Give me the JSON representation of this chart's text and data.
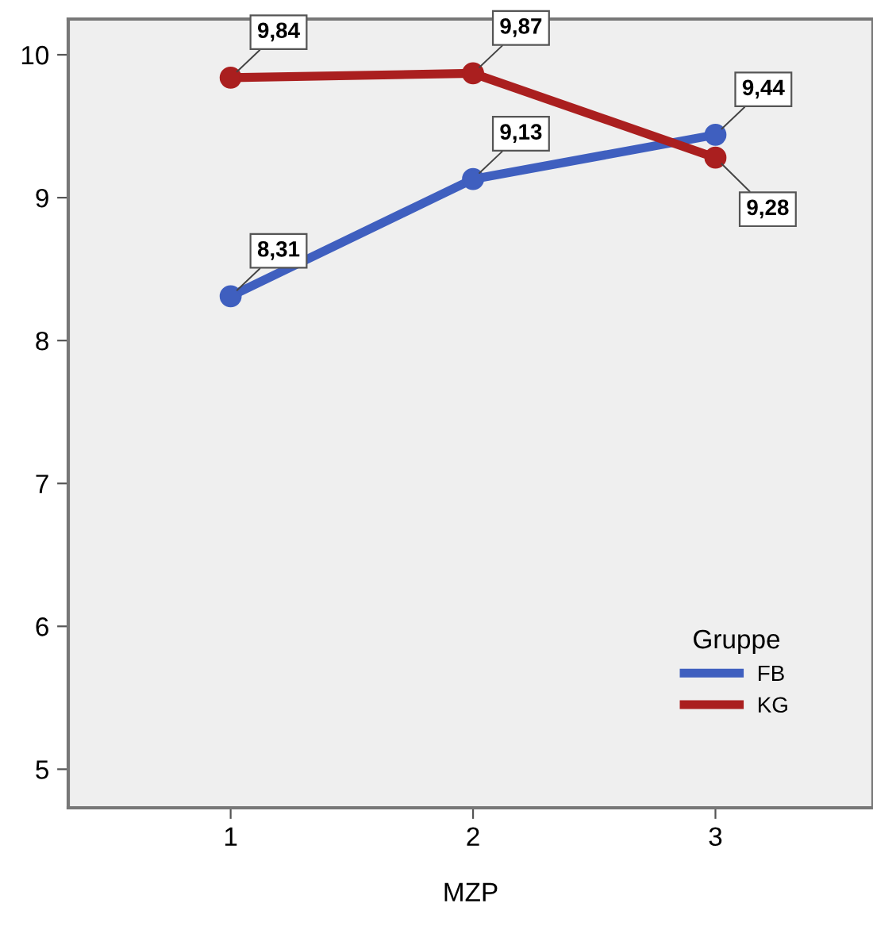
{
  "chart_data": {
    "type": "line",
    "xlabel": "MZP",
    "categories": [
      "1",
      "2",
      "3"
    ],
    "series": [
      {
        "name": "FB",
        "color": "#3f5fbf",
        "values": [
          8.31,
          9.13,
          9.44
        ],
        "value_labels": [
          "8,31",
          "9,13",
          "9,44"
        ]
      },
      {
        "name": "KG",
        "color": "#aa1f1f",
        "values": [
          9.84,
          9.87,
          9.28
        ],
        "value_labels": [
          "9,84",
          "9,87",
          "9,28"
        ]
      }
    ],
    "ylim": [
      4.73,
      10.25
    ],
    "yticks": [
      5,
      6,
      7,
      8,
      9,
      10
    ],
    "grid": false,
    "legend": "bottom right",
    "legend_title": "Gruppe",
    "marker": "circle",
    "line_style": "solid"
  }
}
